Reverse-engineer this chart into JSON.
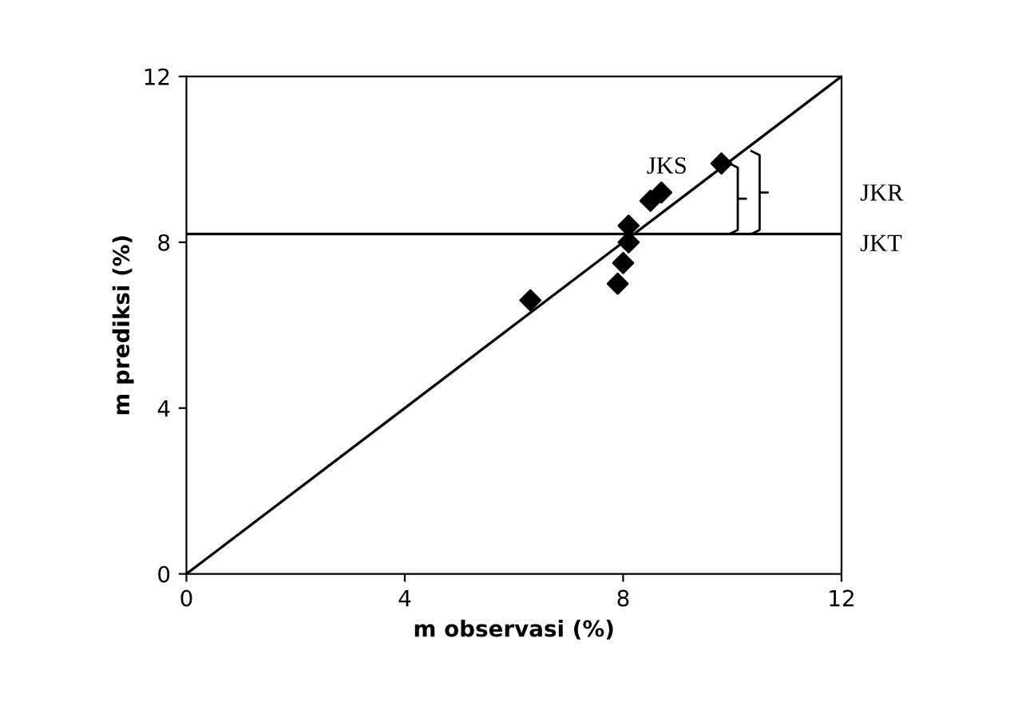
{
  "chart_data": {
    "type": "scatter",
    "xlabel": "m observasi (%)",
    "ylabel": "m prediksi (%)",
    "series": [
      {
        "color": "#000000",
        "marker": "diamond",
        "x": [
          6.3,
          7.9,
          8.0,
          8.1,
          8.1,
          8.5,
          8.7,
          9.8
        ],
        "values": [
          6.6,
          7.0,
          7.5,
          8.0,
          8.4,
          9.0,
          9.2,
          9.9
        ]
      },
      {
        "type": "line",
        "color": "#000000",
        "marker": "none",
        "x": [
          0,
          12
        ],
        "values": [
          0,
          12
        ]
      }
    ],
    "ref_lines": [
      {
        "axis": "y",
        "value": 8.2,
        "color": "#000000"
      }
    ],
    "annotations": [
      {
        "text": "JKS",
        "x": 9.5,
        "y": 9.8
      },
      "JKR",
      "JKT"
    ],
    "xlim": [
      0,
      12
    ],
    "ylim": [
      0,
      12
    ],
    "xticks": [
      0,
      4,
      8,
      12
    ],
    "yticks": [
      0,
      4,
      8,
      12
    ],
    "grid": false,
    "legend": false
  }
}
